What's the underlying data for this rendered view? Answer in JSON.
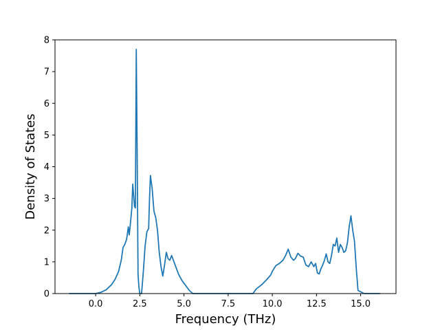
{
  "chart_data": {
    "type": "line",
    "title": "",
    "xlabel": "Frequency (THz)",
    "ylabel": "Density of States",
    "xlim": [
      -2.3,
      17.0
    ],
    "ylim": [
      0,
      8
    ],
    "grid": false,
    "legend": "none",
    "line_color": "#1f77b4",
    "x_ticks": [
      0.0,
      2.5,
      5.0,
      7.5,
      10.0,
      12.5,
      15.0
    ],
    "x_tick_labels": [
      "0.0",
      "2.5",
      "5.0",
      "7.5",
      "10.0",
      "12.5",
      "15.0"
    ],
    "y_ticks": [
      0,
      1,
      2,
      3,
      4,
      5,
      6,
      7,
      8
    ],
    "y_tick_labels": [
      "0",
      "1",
      "2",
      "3",
      "4",
      "5",
      "6",
      "7",
      "8"
    ],
    "series": [
      {
        "x": [
          -1.5,
          0.0,
          0.3,
          0.6,
          0.9,
          1.1,
          1.3,
          1.45,
          1.55,
          1.65,
          1.75,
          1.85,
          1.9,
          1.95,
          2.05,
          2.1,
          2.15,
          2.2,
          2.25,
          2.3,
          2.35,
          2.4,
          2.45,
          2.5,
          2.55,
          2.6,
          2.7,
          2.8,
          2.9,
          3.0,
          3.05,
          3.1,
          3.2,
          3.3,
          3.4,
          3.5,
          3.6,
          3.7,
          3.8,
          3.9,
          4.0,
          4.1,
          4.2,
          4.3,
          4.5,
          4.7,
          4.9,
          5.1,
          5.3,
          5.5,
          6.5,
          7.5,
          8.5,
          8.9,
          9.1,
          9.4,
          9.7,
          9.9,
          10.0,
          10.2,
          10.4,
          10.6,
          10.75,
          10.9,
          11.05,
          11.2,
          11.3,
          11.45,
          11.6,
          11.75,
          11.9,
          12.05,
          12.2,
          12.35,
          12.45,
          12.55,
          12.65,
          12.75,
          12.85,
          12.95,
          13.05,
          13.15,
          13.25,
          13.35,
          13.45,
          13.55,
          13.65,
          13.75,
          13.85,
          13.95,
          14.05,
          14.15,
          14.25,
          14.35,
          14.45,
          14.55,
          14.65,
          14.75,
          14.85,
          15.2,
          16.1
        ],
        "y": [
          0.0,
          0.0,
          0.04,
          0.12,
          0.28,
          0.45,
          0.7,
          1.05,
          1.45,
          1.55,
          1.7,
          2.1,
          1.85,
          2.1,
          2.7,
          3.45,
          3.1,
          2.75,
          2.7,
          7.7,
          4.5,
          0.6,
          0.2,
          0.0,
          0.0,
          0.0,
          0.7,
          1.5,
          1.95,
          2.05,
          3.0,
          3.72,
          3.3,
          2.6,
          2.4,
          2.0,
          1.3,
          0.85,
          0.55,
          0.9,
          1.3,
          1.1,
          1.05,
          1.2,
          0.9,
          0.6,
          0.4,
          0.25,
          0.1,
          0.0,
          0.0,
          0.0,
          0.0,
          0.0,
          0.15,
          0.28,
          0.45,
          0.58,
          0.7,
          0.88,
          0.95,
          1.05,
          1.2,
          1.4,
          1.15,
          1.05,
          1.1,
          1.27,
          1.18,
          1.15,
          0.9,
          0.85,
          1.0,
          0.85,
          0.95,
          0.65,
          0.62,
          0.78,
          0.9,
          1.05,
          1.25,
          1.0,
          0.95,
          1.2,
          1.55,
          1.5,
          1.75,
          1.3,
          1.55,
          1.45,
          1.3,
          1.35,
          1.6,
          2.1,
          2.45,
          2.0,
          1.65,
          0.8,
          0.1,
          0.0,
          0.0
        ]
      }
    ]
  }
}
